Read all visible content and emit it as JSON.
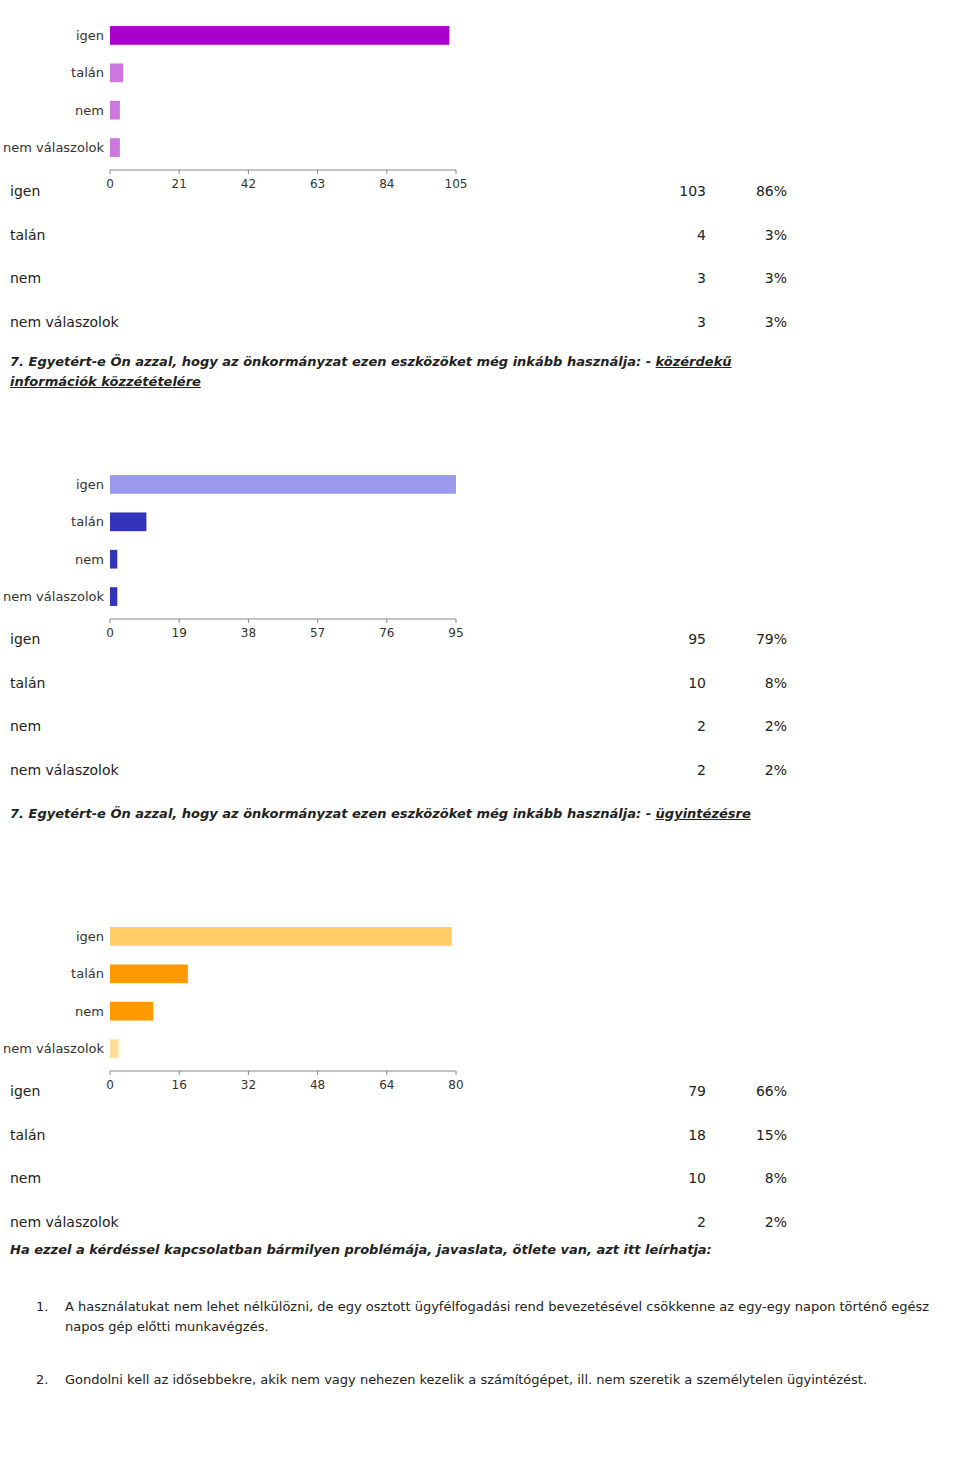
{
  "chart_data": [
    {
      "type": "bar",
      "orientation": "horizontal",
      "categories": [
        "igen",
        "talán",
        "nem",
        "nem válaszolok"
      ],
      "values": [
        103,
        4,
        3,
        3
      ],
      "percentages": [
        "86%",
        "3%",
        "3%",
        "3%"
      ],
      "colors": [
        "#AA00CC",
        "#CC77DD",
        "#CC77DD",
        "#CC77DD"
      ],
      "xlim": [
        0,
        105
      ],
      "xticks": [
        0,
        21,
        42,
        63,
        84,
        105
      ]
    },
    {
      "type": "bar",
      "orientation": "horizontal",
      "title": "7. Egyetért-e Ön azzal, hogy az önkormányzat ezen eszközöket még inkább használja: - közérdekű információk közzétételére",
      "categories": [
        "igen",
        "talán",
        "nem",
        "nem válaszolok"
      ],
      "values": [
        95,
        10,
        2,
        2
      ],
      "percentages": [
        "79%",
        "8%",
        "2%",
        "2%"
      ],
      "colors": [
        "#9999EE",
        "#3333BB",
        "#3333BB",
        "#3333BB"
      ],
      "xlim": [
        0,
        95
      ],
      "xticks": [
        0,
        19,
        38,
        57,
        76,
        95
      ]
    },
    {
      "type": "bar",
      "orientation": "horizontal",
      "title": "7. Egyetért-e Ön azzal, hogy az önkormányzat ezen eszközöket még inkább használja: - ügyintézésre",
      "categories": [
        "igen",
        "talán",
        "nem",
        "nem válaszolok"
      ],
      "values": [
        79,
        18,
        10,
        2
      ],
      "percentages": [
        "66%",
        "15%",
        "8%",
        "2%"
      ],
      "colors": [
        "#FFCC66",
        "#FF9900",
        "#FF9900",
        "#FFDD99"
      ],
      "xlim": [
        0,
        80
      ],
      "xticks": [
        0,
        16,
        32,
        48,
        64,
        80
      ],
      "annotations": [
        {
          "text": "Ha ezzel a kérdéssel kapcsolatban bármilyen problémája, javaslata, ötlete van, azt itt leírhatja:"
        },
        {
          "label": "1.",
          "text": "A használatukat nem lehet nélkülözni, de egy osztott ügyfélfogadási rend bevezetésével csökkenne az egy-egy napon történő egész napos gép előtti munkavégzés."
        },
        {
          "label": "2.",
          "text": "Gondolni kell az idősebbekre, akik nem vagy nehezen kezelik a számítógépet, ill. nem szeretik a személytelen ügyintézést."
        }
      ]
    }
  ]
}
